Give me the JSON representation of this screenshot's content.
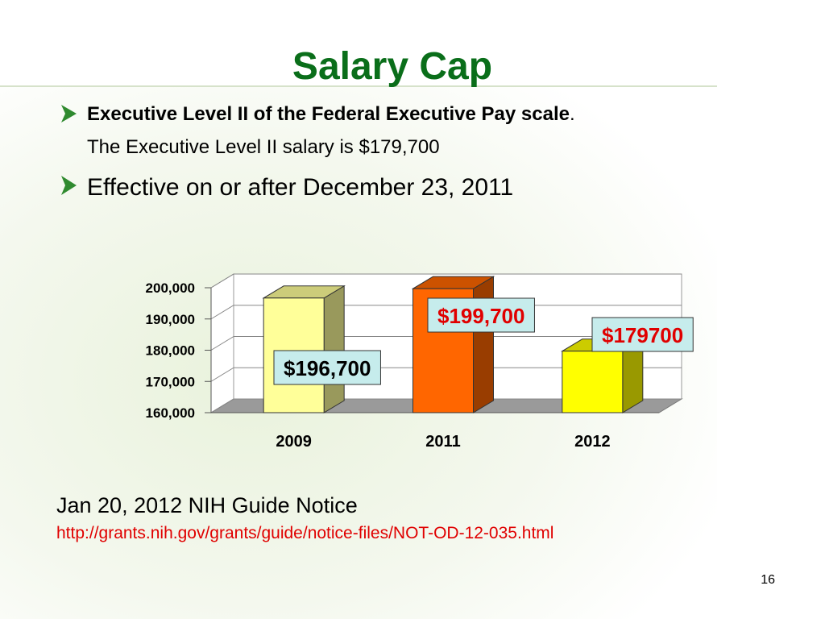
{
  "title": "Salary Cap",
  "bullets": [
    {
      "bold": "Executive Level II of the Federal Executive Pay scale",
      "tail": ".",
      "line2": "The Executive Level II salary is $179,700"
    },
    {
      "text": "Effective on or after December 23, 2011"
    }
  ],
  "chart_data": {
    "type": "bar3d",
    "categories": [
      "2009",
      "2011",
      "2012"
    ],
    "values": [
      196700,
      199700,
      179700
    ],
    "value_labels": [
      "$196,700",
      "$199,700",
      "$179700"
    ],
    "colors": [
      "#ffff99",
      "#ff6600",
      "#ffff00"
    ],
    "ylim": [
      160000,
      200000
    ],
    "yticks": [
      {
        "value": 160000,
        "label": "160,000"
      },
      {
        "value": 170000,
        "label": "170,000"
      },
      {
        "value": 180000,
        "label": "180,000"
      },
      {
        "value": 190000,
        "label": "190,000"
      },
      {
        "value": 200000,
        "label": "200,000"
      }
    ],
    "grid": true
  },
  "notice": "Jan 20, 2012 NIH Guide Notice",
  "link": "http://grants.nih.gov/grants/guide/notice-files/NOT-OD-12-035.html",
  "page_number": "16"
}
